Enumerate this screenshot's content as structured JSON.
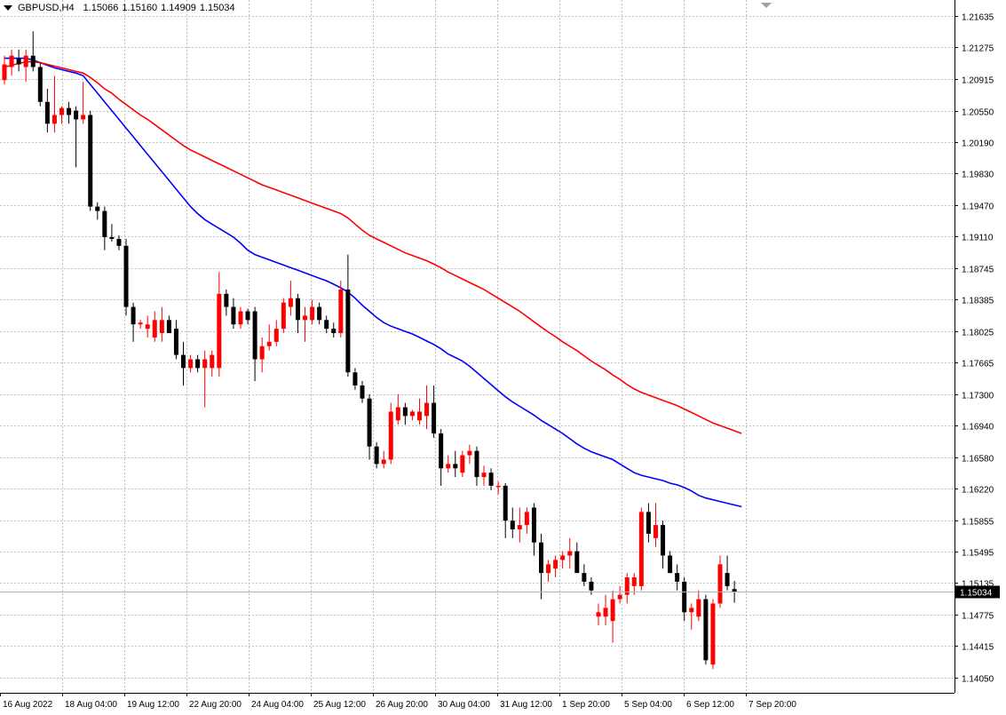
{
  "header": {
    "symbol_tf": "GBPUSD,H4",
    "open": "1.15066",
    "high": "1.15160",
    "low": "1.14909",
    "close": "1.15034"
  },
  "current_price_label": "1.15034",
  "colors": {
    "bull": "#ff0000",
    "bear": "#000000",
    "ma_fast": "#0000ff",
    "ma_slow": "#ff0000",
    "grid": "#c0c0c0",
    "price_line": "#a9b5bf"
  },
  "chart_data": {
    "type": "candlestick",
    "title": "GBPUSD,H4",
    "ylim": [
      1.1395,
      1.218
    ],
    "y_ticks": [
      "1.21635",
      "1.21275",
      "1.20915",
      "1.20550",
      "1.20190",
      "1.19830",
      "1.19470",
      "1.19110",
      "1.18745",
      "1.18385",
      "1.18025",
      "1.17665",
      "1.17300",
      "1.16940",
      "1.16580",
      "1.16220",
      "1.15855",
      "1.15495",
      "1.15135",
      "1.14775",
      "1.14415",
      "1.14050"
    ],
    "x_ticks": [
      "16 Aug 2022",
      "18 Aug 04:00",
      "19 Aug 12:00",
      "22 Aug 20:00",
      "24 Aug 04:00",
      "25 Aug 12:00",
      "26 Aug 20:00",
      "30 Aug 04:00",
      "31 Aug 12:00",
      "1 Sep 20:00",
      "5 Sep 04:00",
      "6 Sep 12:00",
      "7 Sep 20:00"
    ],
    "current_price": 1.15034,
    "candles": [
      {
        "o": 1.209,
        "h": 1.2118,
        "l": 1.2085,
        "c": 1.2108
      },
      {
        "o": 1.2105,
        "h": 1.2125,
        "l": 1.2095,
        "c": 1.2118
      },
      {
        "o": 1.2115,
        "h": 1.2125,
        "l": 1.21,
        "c": 1.2108
      },
      {
        "o": 1.2105,
        "h": 1.2125,
        "l": 1.2088,
        "c": 1.2118
      },
      {
        "o": 1.2118,
        "h": 1.2146,
        "l": 1.21,
        "c": 1.2105
      },
      {
        "o": 1.2105,
        "h": 1.211,
        "l": 1.206,
        "c": 1.2065
      },
      {
        "o": 1.2065,
        "h": 1.208,
        "l": 1.203,
        "c": 1.204
      },
      {
        "o": 1.204,
        "h": 1.2095,
        "l": 1.203,
        "c": 1.205
      },
      {
        "o": 1.205,
        "h": 1.206,
        "l": 1.204,
        "c": 1.2058
      },
      {
        "o": 1.2058,
        "h": 1.2065,
        "l": 1.204,
        "c": 1.205
      },
      {
        "o": 1.2055,
        "h": 1.206,
        "l": 1.199,
        "c": 1.2045
      },
      {
        "o": 1.2045,
        "h": 1.2088,
        "l": 1.204,
        "c": 1.205
      },
      {
        "o": 1.205,
        "h": 1.2055,
        "l": 1.194,
        "c": 1.1945
      },
      {
        "o": 1.1945,
        "h": 1.195,
        "l": 1.193,
        "c": 1.194
      },
      {
        "o": 1.194,
        "h": 1.1945,
        "l": 1.1895,
        "c": 1.191
      },
      {
        "o": 1.191,
        "h": 1.1925,
        "l": 1.1905,
        "c": 1.1908
      },
      {
        "o": 1.1908,
        "h": 1.1912,
        "l": 1.1895,
        "c": 1.19
      },
      {
        "o": 1.19,
        "h": 1.1908,
        "l": 1.182,
        "c": 1.183
      },
      {
        "o": 1.183,
        "h": 1.1835,
        "l": 1.179,
        "c": 1.181
      },
      {
        "o": 1.181,
        "h": 1.1815,
        "l": 1.1805,
        "c": 1.1812
      },
      {
        "o": 1.1805,
        "h": 1.182,
        "l": 1.1795,
        "c": 1.181
      },
      {
        "o": 1.1795,
        "h": 1.1825,
        "l": 1.179,
        "c": 1.1815
      },
      {
        "o": 1.18,
        "h": 1.183,
        "l": 1.179,
        "c": 1.1815
      },
      {
        "o": 1.1815,
        "h": 1.182,
        "l": 1.18,
        "c": 1.18
      },
      {
        "o": 1.1805,
        "h": 1.1815,
        "l": 1.177,
        "c": 1.1775
      },
      {
        "o": 1.1775,
        "h": 1.179,
        "l": 1.174,
        "c": 1.176
      },
      {
        "o": 1.176,
        "h": 1.1775,
        "l": 1.1755,
        "c": 1.177
      },
      {
        "o": 1.177,
        "h": 1.1775,
        "l": 1.1755,
        "c": 1.176
      },
      {
        "o": 1.176,
        "h": 1.178,
        "l": 1.1715,
        "c": 1.177
      },
      {
        "o": 1.176,
        "h": 1.178,
        "l": 1.175,
        "c": 1.1775
      },
      {
        "o": 1.176,
        "h": 1.187,
        "l": 1.175,
        "c": 1.1845
      },
      {
        "o": 1.1845,
        "h": 1.185,
        "l": 1.182,
        "c": 1.183
      },
      {
        "o": 1.183,
        "h": 1.184,
        "l": 1.1805,
        "c": 1.181
      },
      {
        "o": 1.181,
        "h": 1.183,
        "l": 1.1805,
        "c": 1.1825
      },
      {
        "o": 1.1825,
        "h": 1.1828,
        "l": 1.181,
        "c": 1.1815
      },
      {
        "o": 1.1825,
        "h": 1.183,
        "l": 1.1745,
        "c": 1.177
      },
      {
        "o": 1.177,
        "h": 1.1795,
        "l": 1.1755,
        "c": 1.1785
      },
      {
        "o": 1.1785,
        "h": 1.181,
        "l": 1.178,
        "c": 1.179
      },
      {
        "o": 1.179,
        "h": 1.1815,
        "l": 1.1785,
        "c": 1.1805
      },
      {
        "o": 1.1805,
        "h": 1.184,
        "l": 1.18,
        "c": 1.1835
      },
      {
        "o": 1.183,
        "h": 1.186,
        "l": 1.182,
        "c": 1.184
      },
      {
        "o": 1.184,
        "h": 1.1845,
        "l": 1.18,
        "c": 1.1815
      },
      {
        "o": 1.1815,
        "h": 1.183,
        "l": 1.179,
        "c": 1.182
      },
      {
        "o": 1.1815,
        "h": 1.1838,
        "l": 1.181,
        "c": 1.183
      },
      {
        "o": 1.183,
        "h": 1.1835,
        "l": 1.181,
        "c": 1.1815
      },
      {
        "o": 1.1815,
        "h": 1.182,
        "l": 1.18,
        "c": 1.1805
      },
      {
        "o": 1.1805,
        "h": 1.1812,
        "l": 1.1795,
        "c": 1.18
      },
      {
        "o": 1.18,
        "h": 1.186,
        "l": 1.1795,
        "c": 1.185
      },
      {
        "o": 1.185,
        "h": 1.189,
        "l": 1.175,
        "c": 1.1755
      },
      {
        "o": 1.1755,
        "h": 1.176,
        "l": 1.1735,
        "c": 1.174
      },
      {
        "o": 1.174,
        "h": 1.1745,
        "l": 1.172,
        "c": 1.1725
      },
      {
        "o": 1.1725,
        "h": 1.173,
        "l": 1.1655,
        "c": 1.167
      },
      {
        "o": 1.167,
        "h": 1.1675,
        "l": 1.1645,
        "c": 1.165
      },
      {
        "o": 1.165,
        "h": 1.1665,
        "l": 1.1645,
        "c": 1.1655
      },
      {
        "o": 1.1655,
        "h": 1.172,
        "l": 1.165,
        "c": 1.171
      },
      {
        "o": 1.17,
        "h": 1.173,
        "l": 1.1695,
        "c": 1.1715
      },
      {
        "o": 1.1715,
        "h": 1.172,
        "l": 1.1695,
        "c": 1.1705
      },
      {
        "o": 1.1705,
        "h": 1.1712,
        "l": 1.17,
        "c": 1.171
      },
      {
        "o": 1.17,
        "h": 1.1725,
        "l": 1.1695,
        "c": 1.171
      },
      {
        "o": 1.1705,
        "h": 1.174,
        "l": 1.169,
        "c": 1.172
      },
      {
        "o": 1.172,
        "h": 1.174,
        "l": 1.168,
        "c": 1.1685
      },
      {
        "o": 1.1685,
        "h": 1.169,
        "l": 1.1625,
        "c": 1.1645
      },
      {
        "o": 1.1645,
        "h": 1.166,
        "l": 1.164,
        "c": 1.165
      },
      {
        "o": 1.165,
        "h": 1.1665,
        "l": 1.1635,
        "c": 1.1645
      },
      {
        "o": 1.164,
        "h": 1.1665,
        "l": 1.1635,
        "c": 1.166
      },
      {
        "o": 1.166,
        "h": 1.1672,
        "l": 1.165,
        "c": 1.1665
      },
      {
        "o": 1.1665,
        "h": 1.167,
        "l": 1.1625,
        "c": 1.1635
      },
      {
        "o": 1.1635,
        "h": 1.1648,
        "l": 1.1625,
        "c": 1.164
      },
      {
        "o": 1.164,
        "h": 1.1645,
        "l": 1.162,
        "c": 1.1625
      },
      {
        "o": 1.1625,
        "h": 1.163,
        "l": 1.1615,
        "c": 1.1625
      },
      {
        "o": 1.1625,
        "h": 1.1628,
        "l": 1.1565,
        "c": 1.1585
      },
      {
        "o": 1.1585,
        "h": 1.16,
        "l": 1.1565,
        "c": 1.1575
      },
      {
        "o": 1.1575,
        "h": 1.16,
        "l": 1.156,
        "c": 1.158
      },
      {
        "o": 1.158,
        "h": 1.16,
        "l": 1.157,
        "c": 1.1595
      },
      {
        "o": 1.16,
        "h": 1.1605,
        "l": 1.1545,
        "c": 1.156
      },
      {
        "o": 1.156,
        "h": 1.157,
        "l": 1.1495,
        "c": 1.1525
      },
      {
        "o": 1.1525,
        "h": 1.154,
        "l": 1.1515,
        "c": 1.1535
      },
      {
        "o": 1.153,
        "h": 1.1545,
        "l": 1.152,
        "c": 1.154
      },
      {
        "o": 1.154,
        "h": 1.155,
        "l": 1.153,
        "c": 1.1545
      },
      {
        "o": 1.1545,
        "h": 1.1565,
        "l": 1.153,
        "c": 1.155
      },
      {
        "o": 1.155,
        "h": 1.156,
        "l": 1.1525,
        "c": 1.1525
      },
      {
        "o": 1.1525,
        "h": 1.1535,
        "l": 1.151,
        "c": 1.1515
      },
      {
        "o": 1.1515,
        "h": 1.152,
        "l": 1.15,
        "c": 1.1505
      },
      {
        "o": 1.1475,
        "h": 1.149,
        "l": 1.1465,
        "c": 1.148
      },
      {
        "o": 1.1475,
        "h": 1.15,
        "l": 1.1465,
        "c": 1.1485
      },
      {
        "o": 1.147,
        "h": 1.1505,
        "l": 1.1445,
        "c": 1.1495
      },
      {
        "o": 1.1495,
        "h": 1.151,
        "l": 1.149,
        "c": 1.15
      },
      {
        "o": 1.15,
        "h": 1.1525,
        "l": 1.149,
        "c": 1.152
      },
      {
        "o": 1.151,
        "h": 1.1525,
        "l": 1.15,
        "c": 1.152
      },
      {
        "o": 1.151,
        "h": 1.16,
        "l": 1.1505,
        "c": 1.1595
      },
      {
        "o": 1.1595,
        "h": 1.1605,
        "l": 1.156,
        "c": 1.157
      },
      {
        "o": 1.1565,
        "h": 1.1605,
        "l": 1.1555,
        "c": 1.158
      },
      {
        "o": 1.158,
        "h": 1.1585,
        "l": 1.153,
        "c": 1.1545
      },
      {
        "o": 1.1545,
        "h": 1.155,
        "l": 1.1525,
        "c": 1.1525
      },
      {
        "o": 1.1525,
        "h": 1.1535,
        "l": 1.1505,
        "c": 1.1515
      },
      {
        "o": 1.1515,
        "h": 1.152,
        "l": 1.147,
        "c": 1.148
      },
      {
        "o": 1.148,
        "h": 1.149,
        "l": 1.146,
        "c": 1.1485
      },
      {
        "o": 1.1475,
        "h": 1.1505,
        "l": 1.147,
        "c": 1.1495
      },
      {
        "o": 1.1495,
        "h": 1.15,
        "l": 1.142,
        "c": 1.1425
      },
      {
        "o": 1.142,
        "h": 1.1495,
        "l": 1.1415,
        "c": 1.149
      },
      {
        "o": 1.149,
        "h": 1.1545,
        "l": 1.1485,
        "c": 1.1535
      },
      {
        "o": 1.1525,
        "h": 1.1545,
        "l": 1.1505,
        "c": 1.151
      },
      {
        "o": 1.15066,
        "h": 1.1516,
        "l": 1.14909,
        "c": 1.15034
      }
    ],
    "series": [
      {
        "name": "",
        "color": "#0000ff",
        "values": [
          1.2115,
          1.2115,
          1.2115,
          1.2115,
          1.2113,
          1.211,
          1.2107,
          1.2104,
          1.2102,
          1.21,
          1.2098,
          1.2095,
          1.2085,
          1.2075,
          1.2065,
          1.2055,
          1.2045,
          1.2035,
          1.2025,
          1.2015,
          1.2005,
          1.1995,
          1.1985,
          1.1975,
          1.1965,
          1.1955,
          1.1945,
          1.1937,
          1.193,
          1.1925,
          1.192,
          1.1915,
          1.191,
          1.1903,
          1.1895,
          1.189,
          1.1887,
          1.1884,
          1.1881,
          1.1878,
          1.1875,
          1.1872,
          1.1869,
          1.1866,
          1.1863,
          1.186,
          1.1856,
          1.1852,
          1.1847,
          1.184,
          1.1832,
          1.1825,
          1.1818,
          1.1812,
          1.1808,
          1.1805,
          1.1802,
          1.1799,
          1.1795,
          1.1791,
          1.1787,
          1.1782,
          1.1776,
          1.1772,
          1.1768,
          1.1762,
          1.1755,
          1.1748,
          1.1741,
          1.1734,
          1.1727,
          1.1721,
          1.1716,
          1.1711,
          1.1706,
          1.17,
          1.1695,
          1.169,
          1.1685,
          1.1679,
          1.1673,
          1.1668,
          1.1664,
          1.1661,
          1.1658,
          1.1655,
          1.165,
          1.1645,
          1.164,
          1.1637,
          1.1635,
          1.1633,
          1.1631,
          1.1628,
          1.1626,
          1.1623,
          1.1619,
          1.1614,
          1.1611,
          1.1609,
          1.1607,
          1.1605,
          1.1603,
          1.1601
        ]
      },
      {
        "name": "",
        "color": "#ff0000",
        "values": [
          1.2105,
          1.2107,
          1.2109,
          1.2111,
          1.2111,
          1.211,
          1.2108,
          1.2106,
          1.2104,
          1.2102,
          1.21,
          1.2098,
          1.2093,
          1.2087,
          1.208,
          1.2075,
          1.2068,
          1.2062,
          1.2056,
          1.205,
          1.2045,
          1.2039,
          1.2033,
          1.2027,
          1.2021,
          1.2015,
          1.201,
          1.2006,
          1.2002,
          1.1998,
          1.1994,
          1.199,
          1.1986,
          1.1982,
          1.1978,
          1.1974,
          1.197,
          1.1967,
          1.1964,
          1.1961,
          1.1958,
          1.1955,
          1.1952,
          1.1949,
          1.1946,
          1.1943,
          1.194,
          1.1937,
          1.1932,
          1.1925,
          1.1918,
          1.1912,
          1.1908,
          1.1904,
          1.19,
          1.1896,
          1.1892,
          1.1889,
          1.1886,
          1.1883,
          1.1879,
          1.1875,
          1.187,
          1.1866,
          1.1862,
          1.1858,
          1.1854,
          1.185,
          1.1845,
          1.184,
          1.1835,
          1.183,
          1.1825,
          1.1819,
          1.1813,
          1.1807,
          1.1801,
          1.1796,
          1.179,
          1.1785,
          1.178,
          1.1774,
          1.1768,
          1.1763,
          1.1758,
          1.1752,
          1.1747,
          1.1741,
          1.1736,
          1.1732,
          1.1729,
          1.1726,
          1.1723,
          1.172,
          1.1717,
          1.1713,
          1.1709,
          1.1705,
          1.1701,
          1.1697,
          1.1694,
          1.1691,
          1.1688,
          1.1685
        ]
      }
    ]
  }
}
